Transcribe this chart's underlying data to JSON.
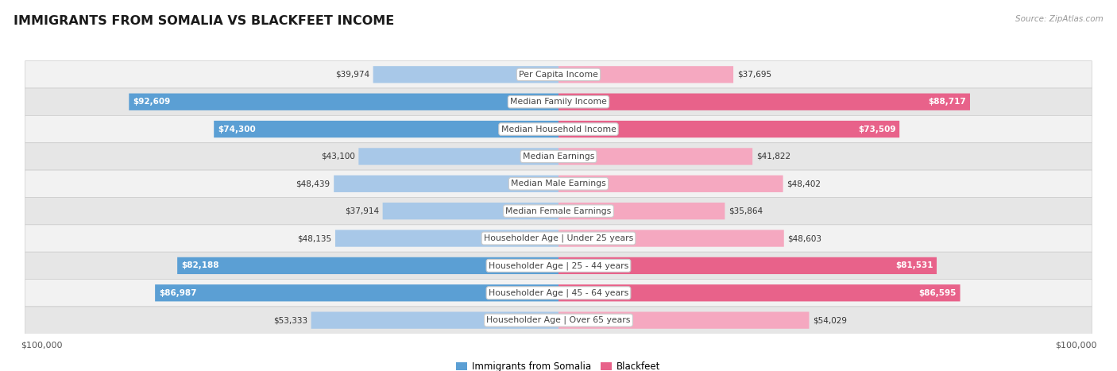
{
  "title": "IMMIGRANTS FROM SOMALIA VS BLACKFEET INCOME",
  "source": "Source: ZipAtlas.com",
  "categories": [
    "Per Capita Income",
    "Median Family Income",
    "Median Household Income",
    "Median Earnings",
    "Median Male Earnings",
    "Median Female Earnings",
    "Householder Age | Under 25 years",
    "Householder Age | 25 - 44 years",
    "Householder Age | 45 - 64 years",
    "Householder Age | Over 65 years"
  ],
  "somalia_values": [
    39974,
    92609,
    74300,
    43100,
    48439,
    37914,
    48135,
    82188,
    86987,
    53333
  ],
  "blackfeet_values": [
    37695,
    88717,
    73509,
    41822,
    48402,
    35864,
    48603,
    81531,
    86595,
    54029
  ],
  "somalia_labels": [
    "$39,974",
    "$92,609",
    "$74,300",
    "$43,100",
    "$48,439",
    "$37,914",
    "$48,135",
    "$82,188",
    "$86,987",
    "$53,333"
  ],
  "blackfeet_labels": [
    "$37,695",
    "$88,717",
    "$73,509",
    "$41,822",
    "$48,402",
    "$35,864",
    "$48,603",
    "$81,531",
    "$86,595",
    "$54,029"
  ],
  "max_value": 100000,
  "somalia_color_dark": "#5b9fd4",
  "somalia_color_light": "#a8c8e8",
  "blackfeet_color_dark": "#e8628a",
  "blackfeet_color_light": "#f5a8c0",
  "label_threshold": 60000,
  "row_bg_light": "#f2f2f2",
  "row_bg_dark": "#e6e6e6",
  "axis_label": "$100,000",
  "legend_somalia": "Immigrants from Somalia",
  "legend_blackfeet": "Blackfeet"
}
